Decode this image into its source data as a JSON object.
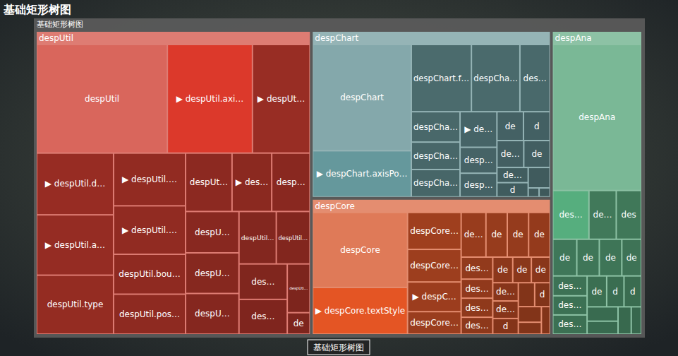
{
  "chart_data": {
    "type": "treemap",
    "title": "基础矩形树图",
    "root_name": "基础矩形树图",
    "breadcrumb": "基础矩形树图",
    "data_labels": true,
    "groups": [
      {
        "name": "despUtil",
        "color": "#d9665c",
        "children": [
          {
            "name": "despUtil",
            "value": 26250
          },
          {
            "name": "▶ despUtil.axi…",
            "value": 17100
          },
          {
            "name": "▶ despUt…",
            "value": 11550
          },
          {
            "name": "▶ despUtil.d…",
            "value": 8787
          },
          {
            "name": "▶ despUtil.a…",
            "value": 8585
          },
          {
            "name": "despUtil.type",
            "value": 8383
          },
          {
            "name": "▶ despUtil.…",
            "value": 7030
          },
          {
            "name": "▶ despUtil.…",
            "value": 6460
          },
          {
            "name": "despUtil.bou…",
            "value": 5320
          },
          {
            "name": "despUtil.pos…",
            "value": 5320
          },
          {
            "name": "despUt…",
            "value": 5022
          },
          {
            "name": "▶ des…",
            "value": 4293
          },
          {
            "name": "desp…",
            "value": 4131
          },
          {
            "name": "despU…",
            "value": 4015
          },
          {
            "name": "despU…",
            "value": 4015
          },
          {
            "name": "despU…",
            "value": 4088
          },
          {
            "name": "despUtil…",
            "value": 3621
          },
          {
            "name": "des…",
            "value": 3102
          },
          {
            "name": "des…",
            "value": 3168
          },
          {
            "name": "despUtil…",
            "value": 3266
          },
          {
            "name": "despUti…",
            "value": 2046
          },
          {
            "name": "de",
            "value": 899
          }
        ]
      },
      {
        "name": "despChart",
        "color": "#84a8ab",
        "children": [
          {
            "name": "despChart",
            "value": 20300
          },
          {
            "name": "▶ despChart.axisPo…",
            "value": 8820
          },
          {
            "name": "despChart.f…",
            "value": 7832
          },
          {
            "name": "despCha…",
            "value": 6319
          },
          {
            "name": "des…",
            "value": 3916
          },
          {
            "name": "despCha…",
            "value": 2870
          },
          {
            "name": "despCha…",
            "value": 2590
          },
          {
            "name": "despCha…",
            "value": 2590
          },
          {
            "name": "▶ de…",
            "value": 2544
          },
          {
            "name": "desp…",
            "value": 1855
          },
          {
            "name": "desp…",
            "value": 1696
          },
          {
            "name": "de",
            "value": 1482
          },
          {
            "name": "de",
            "value": 1368
          },
          {
            "name": "d",
            "value": 1482
          },
          {
            "name": "de…",
            "value": 1400
          },
          {
            "name": "de…",
            "value": 920
          },
          {
            "name": "d",
            "value": 864
          },
          {
            "name": null,
            "value": 864
          },
          {
            "name": null,
            "value": 190
          },
          {
            "name": null,
            "value": 190
          }
        ]
      },
      {
        "name": "despCore",
        "color": "#df7a58",
        "children": [
          {
            "name": "despCore",
            "value": 14098
          },
          {
            "name": "▶ despCore.textStyle",
            "value": 8778
          },
          {
            "name": "despCore…",
            "value": 3927
          },
          {
            "name": "despCore…",
            "value": 3465
          },
          {
            "name": "▶ despC…",
            "value": 3157
          },
          {
            "name": "despCore…",
            "value": 2387
          },
          {
            "name": "de…",
            "value": 2196
          },
          {
            "name": "de",
            "value": 1891
          },
          {
            "name": "de",
            "value": 1891
          },
          {
            "name": "de",
            "value": 1891
          },
          {
            "name": "des…",
            "value": 1380
          },
          {
            "name": "des…",
            "value": 1196
          },
          {
            "name": "des…",
            "value": 1196
          },
          {
            "name": "des…",
            "value": 1058
          },
          {
            "name": "de",
            "value": 1015
          },
          {
            "name": "de",
            "value": 945
          },
          {
            "name": "de",
            "value": 945
          },
          {
            "name": "de…",
            "value": 925
          },
          {
            "name": "de…",
            "value": 888
          },
          {
            "name": "d",
            "value": 792
          },
          {
            "name": "d",
            "value": 726
          },
          {
            "name": null,
            "value": 777
          },
          {
            "name": null,
            "value": 714
          },
          {
            "name": null,
            "value": 544
          },
          {
            "name": null,
            "value": 468
          }
        ]
      },
      {
        "name": "despAna",
        "color": "#7ab896",
        "children": [
          {
            "name": "despAna",
            "value": 24428
          },
          {
            "name": "des…",
            "value": 3332
          },
          {
            "name": "de…",
            "value": 2516
          },
          {
            "name": "des",
            "value": 2312
          },
          {
            "name": "de",
            "value": 1664
          },
          {
            "name": "de",
            "value": 1560
          },
          {
            "name": "de",
            "value": 1560
          },
          {
            "name": "de",
            "value": 1352
          },
          {
            "name": "des…",
            "value": 1288
          },
          {
            "name": "des…",
            "value": 1242
          },
          {
            "name": "des…",
            "value": 1242
          },
          {
            "name": "de",
            "value": 1144
          },
          {
            "name": "d",
            "value": 1012
          },
          {
            "name": "d",
            "value": 1012
          },
          {
            "name": null,
            "value": 840
          },
          {
            "name": null,
            "value": 756
          },
          {
            "name": null,
            "value": 680
          },
          {
            "name": null,
            "value": 520
          }
        ]
      }
    ]
  }
}
